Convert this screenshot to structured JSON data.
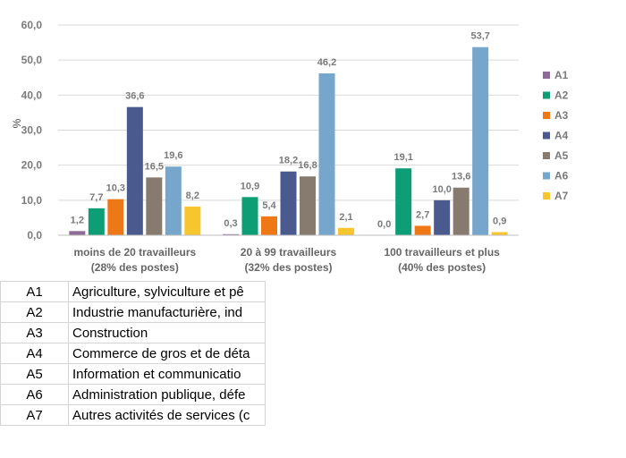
{
  "chart_data": {
    "type": "bar",
    "ylabel": "%",
    "ylim": [
      0,
      60
    ],
    "yticks": [
      "0,0",
      "10,0",
      "20,0",
      "30,0",
      "40,0",
      "50,0",
      "60,0"
    ],
    "categories": [
      [
        "moins de 20 travailleurs",
        "(28% des postes)"
      ],
      [
        "20 à 99 travailleurs",
        "(32% des postes)"
      ],
      [
        "100 travailleurs et plus",
        "(40% des postes)"
      ]
    ],
    "series": [
      {
        "name": "A1",
        "color": "#8e6c97",
        "values": [
          1.2,
          0.3,
          0.0
        ],
        "labels": [
          "1,2",
          "0,3",
          "0,0"
        ]
      },
      {
        "name": "A2",
        "color": "#0e9e76",
        "values": [
          7.7,
          10.9,
          19.1
        ],
        "labels": [
          "7,7",
          "10,9",
          "19,1"
        ]
      },
      {
        "name": "A3",
        "color": "#ee7716",
        "values": [
          10.3,
          5.4,
          2.7
        ],
        "labels": [
          "10,3",
          "5,4",
          "2,7"
        ]
      },
      {
        "name": "A4",
        "color": "#4b5a8e",
        "values": [
          36.6,
          18.2,
          10.0
        ],
        "labels": [
          "36,6",
          "18,2",
          "10,0"
        ]
      },
      {
        "name": "A5",
        "color": "#877b6f",
        "values": [
          16.5,
          16.8,
          13.6
        ],
        "labels": [
          "16,5",
          "16,8",
          "13,6"
        ]
      },
      {
        "name": "A6",
        "color": "#77a6cd",
        "values": [
          19.6,
          46.2,
          53.7
        ],
        "labels": [
          "19,6",
          "46,2",
          "53,7"
        ]
      },
      {
        "name": "A7",
        "color": "#f7c52e",
        "values": [
          8.2,
          2.1,
          0.9
        ],
        "labels": [
          "8,2",
          "2,1",
          "0,9"
        ]
      }
    ],
    "grid": true,
    "legend": "right"
  },
  "table": [
    {
      "code": "A1",
      "label": "Agriculture, sylviculture et pê"
    },
    {
      "code": "A2",
      "label": "Industrie manufacturière, ind"
    },
    {
      "code": "A3",
      "label": "Construction"
    },
    {
      "code": "A4",
      "label": "Commerce de gros et de déta"
    },
    {
      "code": "A5",
      "label": "Information et communicatio"
    },
    {
      "code": "A6",
      "label": "Administration publique, défe"
    },
    {
      "code": "A7",
      "label": "Autres activités de services (c"
    }
  ]
}
